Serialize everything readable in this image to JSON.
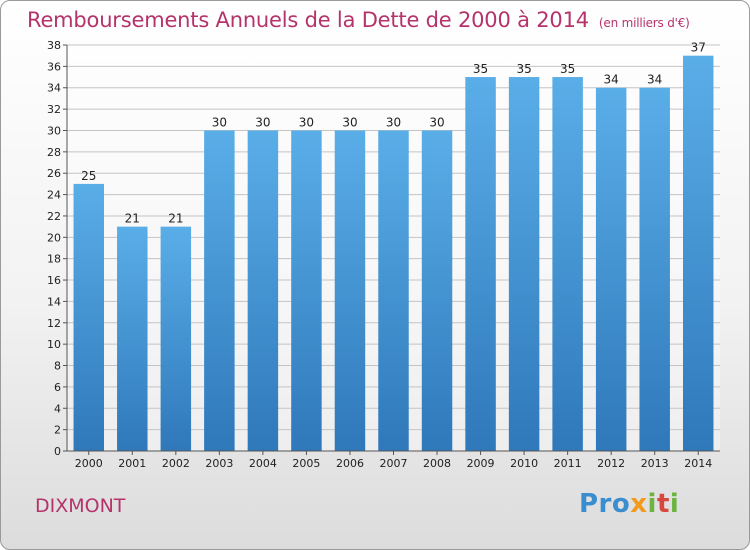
{
  "chart_data": {
    "type": "bar",
    "title": "Remboursements Annuels de la Dette de 2000 à 2014",
    "unit": "(en milliers d'€)",
    "categories": [
      "2000",
      "2001",
      "2002",
      "2003",
      "2004",
      "2005",
      "2006",
      "2007",
      "2008",
      "2009",
      "2010",
      "2011",
      "2012",
      "2013",
      "2014"
    ],
    "values": [
      25,
      21,
      21,
      30,
      30,
      30,
      30,
      30,
      30,
      35,
      35,
      35,
      34,
      34,
      37
    ],
    "ylim": [
      0,
      38
    ],
    "yticks": [
      0,
      2,
      4,
      6,
      8,
      10,
      12,
      14,
      16,
      18,
      20,
      22,
      24,
      26,
      28,
      30,
      32,
      34,
      36,
      38
    ],
    "grid": true,
    "xlabel": "",
    "ylabel": ""
  },
  "commune": "DIXMONT",
  "logo": {
    "p1": "Pro",
    "p2": "x",
    "p3": "i",
    "p4": "t",
    "p5": "i"
  },
  "colors": {
    "bar_top": "#5aaee8",
    "bar_bottom": "#2f78ba",
    "title": "#b5336b"
  }
}
